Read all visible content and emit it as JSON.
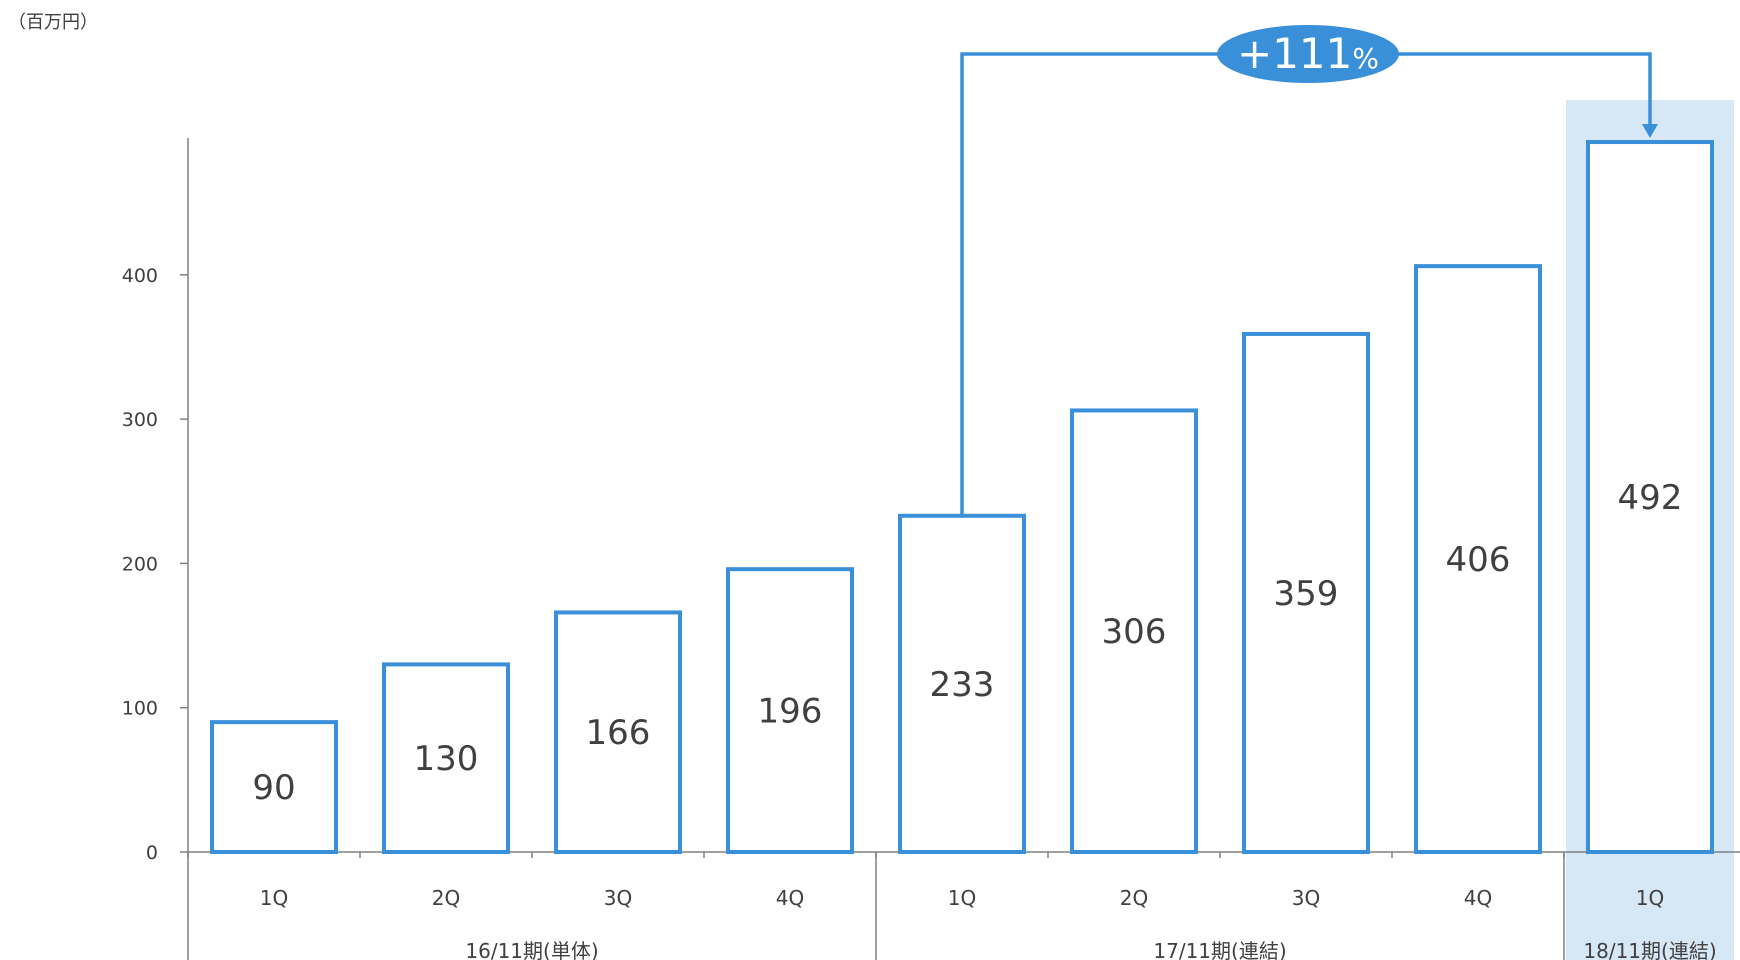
{
  "chart_data": {
    "type": "bar",
    "unit_label": "（百万円）",
    "categories": [
      "1Q",
      "2Q",
      "3Q",
      "4Q",
      "1Q",
      "2Q",
      "3Q",
      "4Q",
      "1Q"
    ],
    "values": [
      90,
      130,
      166,
      196,
      233,
      306,
      359,
      406,
      492
    ],
    "periods": [
      {
        "label": "16/11期(単体)",
        "start": 0,
        "end": 3
      },
      {
        "label": "17/11期(連結)",
        "start": 4,
        "end": 7
      },
      {
        "label": "18/11期(連結)",
        "start": 8,
        "end": 8
      }
    ],
    "y_ticks": [
      0,
      100,
      200,
      300,
      400
    ],
    "ylim": [
      0,
      500
    ],
    "highlight_index": 8,
    "growth": {
      "label": "+111",
      "suffix": "%",
      "from_index": 4,
      "to_index": 8
    },
    "grid": false,
    "colors": {
      "bar_stroke": "#3a8fd9",
      "highlight_bg": "#d6e7f6",
      "bubble": "#3a8fd9",
      "axis": "#808080",
      "text": "#404040"
    }
  }
}
